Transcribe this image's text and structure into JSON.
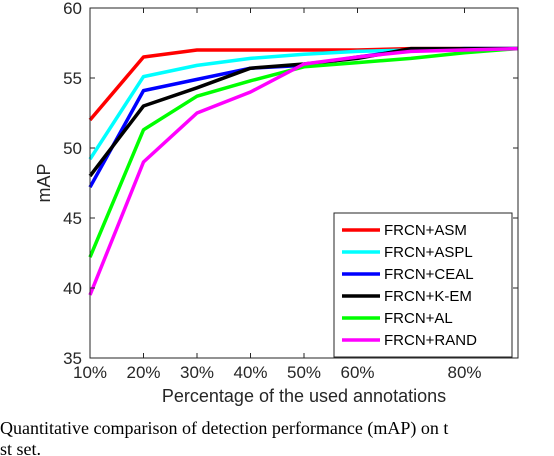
{
  "chart_data": {
    "type": "line",
    "xlabel": "Percentage of the used annotations",
    "ylabel": "mAP",
    "x": [
      10,
      20,
      30,
      40,
      50,
      60,
      70,
      80,
      90
    ],
    "xticks": [
      10,
      20,
      30,
      40,
      50,
      60,
      80
    ],
    "xtick_labels": [
      "10%",
      "20%",
      "30%",
      "40%",
      "50%",
      "60%",
      "80%"
    ],
    "xlim": [
      10,
      90
    ],
    "ylim": [
      35,
      60
    ],
    "yticks": [
      35,
      40,
      45,
      50,
      55,
      60
    ],
    "grid": false,
    "legend_position": "bottom-right",
    "series": [
      {
        "name": "FRCN+ASM",
        "color": "#ff0000",
        "values": [
          52.0,
          56.5,
          57.0,
          57.0,
          57.0,
          57.0,
          57.1,
          57.1,
          57.1
        ]
      },
      {
        "name": "FRCN+ASPL",
        "color": "#00ffff",
        "values": [
          49.2,
          55.1,
          55.9,
          56.4,
          56.7,
          56.9,
          57.0,
          57.1,
          57.1
        ]
      },
      {
        "name": "FRCN+CEAL",
        "color": "#0000ff",
        "values": [
          47.2,
          54.1,
          54.9,
          55.7,
          55.9,
          56.5,
          57.0,
          57.1,
          57.1
        ]
      },
      {
        "name": "FRCN+K-EM",
        "color": "#000000",
        "values": [
          48.0,
          53.0,
          54.3,
          55.7,
          56.0,
          56.4,
          57.1,
          57.1,
          57.1
        ]
      },
      {
        "name": "FRCN+AL",
        "color": "#00ff00",
        "values": [
          42.2,
          51.3,
          53.7,
          54.8,
          55.8,
          56.1,
          56.4,
          56.8,
          57.1
        ]
      },
      {
        "name": "FRCN+RAND",
        "color": "#ff00ff",
        "values": [
          39.5,
          49.0,
          52.5,
          54.0,
          56.0,
          56.5,
          56.9,
          57.0,
          57.1
        ]
      }
    ]
  },
  "caption": {
    "line1": "Quantitative comparison of detection performance (mAP) on t",
    "line2": "st set."
  }
}
